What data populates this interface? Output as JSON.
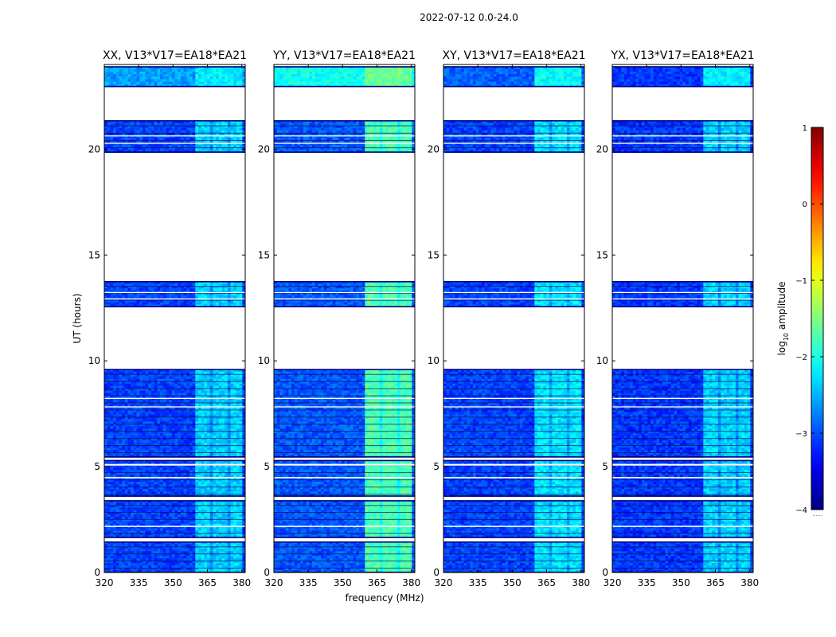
{
  "figure_title": "2022-07-12 0.0-24.0",
  "chart_data": {
    "type": "heatmap",
    "suptitle": "2022-07-12 0.0-24.0",
    "xlabel": "frequency (MHz)",
    "ylabel": "UT (hours)",
    "xlim": [
      320,
      381.5
    ],
    "ylim": [
      0,
      24
    ],
    "xticks": [
      320,
      335,
      350,
      365,
      380
    ],
    "yticks": [
      0,
      5,
      10,
      15,
      20
    ],
    "data_intervals_hours": [
      [
        0,
        1.45
      ],
      [
        1.65,
        3.4
      ],
      [
        3.6,
        5.3
      ],
      [
        5.45,
        9.6
      ],
      [
        12.55,
        13.75
      ],
      [
        19.85,
        21.35
      ],
      [
        22.95,
        23.9
      ]
    ],
    "rfi_band_mhz": [
      359.5,
      380.5
    ],
    "panels": [
      {
        "title": "XX, V13*V17=EA18*EA21",
        "pol": "XX",
        "base_level": -3.05,
        "rfi_level": -2.35,
        "top_level": -2.6
      },
      {
        "title": "YY, V13*V17=EA18*EA21",
        "pol": "YY",
        "base_level": -2.95,
        "rfi_level": -1.75,
        "top_level": -2.05
      },
      {
        "title": "XY, V13*V17=EA18*EA21",
        "pol": "XY",
        "base_level": -3.05,
        "rfi_level": -2.25,
        "top_level": -2.9
      },
      {
        "title": "YX, V13*V17=EA18*EA21",
        "pol": "YX",
        "base_level": -3.1,
        "rfi_level": -2.35,
        "top_level": -3.1
      }
    ],
    "colorbar": {
      "label": "log10 amplitude",
      "label_prefix": "log",
      "label_sub": "10",
      "label_suffix": " amplitude",
      "range": [
        -4,
        1
      ],
      "ticks": [
        1,
        0,
        -1,
        -2,
        -3,
        -4
      ],
      "colormap": "jet",
      "extra_text": "......"
    }
  }
}
